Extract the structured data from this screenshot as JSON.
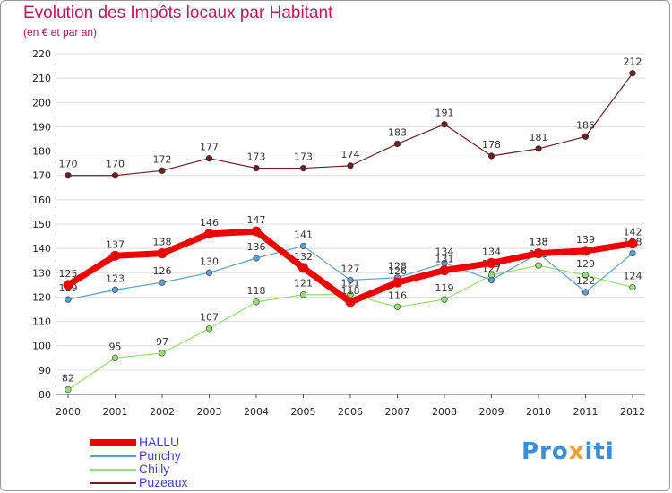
{
  "chart_data": {
    "type": "line",
    "title": "Evolution des Impôts locaux par Habitant",
    "subtitle": "(en € et par an)",
    "xlabel": "",
    "ylabel": "",
    "categories": [
      "2000",
      "2001",
      "2002",
      "2003",
      "2004",
      "2005",
      "2006",
      "2007",
      "2008",
      "2009",
      "2010",
      "2011",
      "2012"
    ],
    "ylim": [
      80,
      220
    ],
    "yticks": [
      80,
      90,
      100,
      110,
      120,
      130,
      140,
      150,
      160,
      170,
      180,
      190,
      200,
      210,
      220
    ],
    "grid": "horizontal",
    "legend": "bottom-left",
    "series": [
      {
        "name": "Puzeaux",
        "color": "#6b1f24",
        "values": [
          170,
          170,
          172,
          177,
          173,
          173,
          174,
          183,
          191,
          178,
          181,
          186,
          212
        ]
      },
      {
        "name": "Chilly",
        "color": "#99dd77",
        "values": [
          82,
          95,
          97,
          107,
          118,
          121,
          121,
          116,
          119,
          129,
          133,
          129,
          124
        ]
      },
      {
        "name": "Punchy",
        "color": "#5f9dd1",
        "values": [
          119,
          123,
          126,
          130,
          136,
          141,
          127,
          128,
          134,
          127,
          138,
          122,
          138
        ]
      },
      {
        "name": "HALLU",
        "color": "#ee0000",
        "values": [
          125,
          137,
          138,
          146,
          147,
          132,
          118,
          126,
          131,
          134,
          138,
          139,
          142
        ]
      }
    ]
  },
  "legend_order": [
    "HALLU",
    "Punchy",
    "Chilly",
    "Puzeaux"
  ],
  "brand": {
    "part1": "Pro",
    "part2": "x",
    "part3": "iti"
  }
}
